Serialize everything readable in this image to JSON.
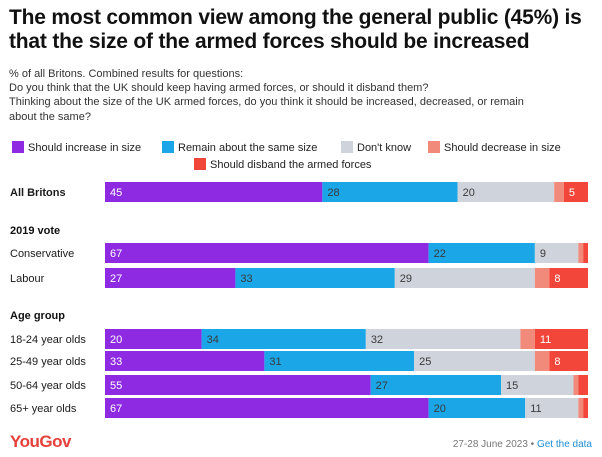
{
  "header": {
    "title": "The most common view among the general public (45%) is that the size of the armed forces should be increased",
    "subtitle_lines": [
      "% of all Britons. Combined results for questions:",
      "Do you think that the UK should keep having armed forces, or should it disband them?",
      "Thinking about the size of the UK armed forces, do you think it should be increased, decreased, or remain",
      "about the same?"
    ]
  },
  "colors": {
    "increase": "#8e2be2",
    "same": "#1ba6e8",
    "dont_know": "#cfd3dc",
    "decrease": "#f28a7c",
    "disband": "#f2463a"
  },
  "chart_data": {
    "type": "bar",
    "orientation": "horizontal",
    "stacked": true,
    "xlim": [
      0,
      100
    ],
    "grid": false,
    "legend_position": "top",
    "series": [
      {
        "name": "Should increase in size",
        "color_key": "increase"
      },
      {
        "name": "Remain about the same size",
        "color_key": "same"
      },
      {
        "name": "Don't know",
        "color_key": "dont_know"
      },
      {
        "name": "Should decrease in size",
        "color_key": "decrease"
      },
      {
        "name": "Should disband the armed forces",
        "color_key": "disband"
      }
    ],
    "groups": [
      {
        "label": "",
        "rows": [
          {
            "label": "All Britons",
            "bold": true,
            "values": [
              45,
              28,
              20,
              2,
              5
            ],
            "labels": [
              "45",
              "28",
              "20",
              "",
              "5"
            ]
          }
        ]
      },
      {
        "label": "2019 vote",
        "rows": [
          {
            "label": "Conservative",
            "values": [
              67,
              22,
              9,
              1,
              1
            ],
            "labels": [
              "67",
              "22",
              "9",
              "",
              ""
            ]
          },
          {
            "label": "Labour",
            "values": [
              27,
              33,
              29,
              3,
              8
            ],
            "labels": [
              "27",
              "33",
              "29",
              "",
              "8"
            ]
          }
        ]
      },
      {
        "label": "Age group",
        "rows": [
          {
            "label": "18-24 year olds",
            "values": [
              20,
              34,
              32,
              3,
              11
            ],
            "labels": [
              "20",
              "34",
              "32",
              "",
              "11"
            ]
          },
          {
            "label": "25-49 year olds",
            "values": [
              33,
              31,
              25,
              3,
              8
            ],
            "labels": [
              "33",
              "31",
              "25",
              "",
              "8"
            ]
          },
          {
            "label": "50-64 year olds",
            "values": [
              55,
              27,
              15,
              1,
              2
            ],
            "labels": [
              "55",
              "27",
              "15",
              "",
              ""
            ]
          },
          {
            "label": "65+ year olds",
            "values": [
              67,
              20,
              11,
              1,
              1
            ],
            "labels": [
              "67",
              "20",
              "11",
              "",
              ""
            ]
          }
        ]
      }
    ]
  },
  "footer": {
    "brand": "YouGov",
    "date": "27-28 June 2023",
    "separator": " • ",
    "link": "Get the data"
  }
}
